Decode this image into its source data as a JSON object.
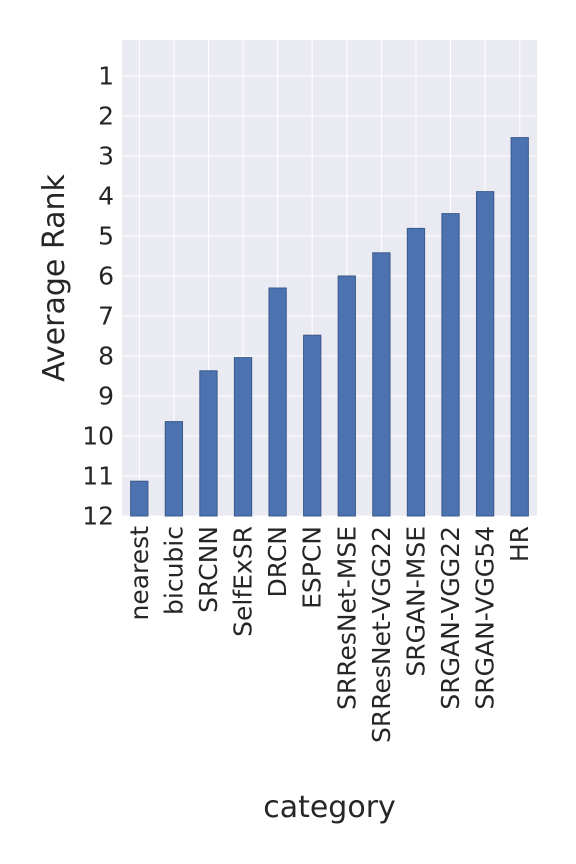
{
  "chart_data": {
    "type": "bar",
    "categories": [
      "nearest",
      "bicubic",
      "SRCNN",
      "SelfExSR",
      "DRCN",
      "ESPCN",
      "SRResNet-MSE",
      "SRResNet-VGG22",
      "SRGAN-MSE",
      "SRGAN-VGG22",
      "SRGAN-VGG54",
      "HR"
    ],
    "values": [
      11.13,
      9.64,
      8.37,
      8.04,
      6.3,
      7.48,
      6.0,
      5.42,
      4.81,
      4.44,
      3.89,
      2.54
    ],
    "xlabel": "category",
    "ylabel": "Average Rank",
    "yticks": [
      "1",
      "2",
      "3",
      "4",
      "5",
      "6",
      "7",
      "8",
      "9",
      "10",
      "11",
      "12"
    ],
    "ylim": [
      0.1,
      12
    ],
    "y_inverted": true,
    "grid": true,
    "colors": {
      "bar": "#4c72b0",
      "background": "#eaeaf2",
      "grid": "#ffffff",
      "text": "#262626"
    }
  }
}
